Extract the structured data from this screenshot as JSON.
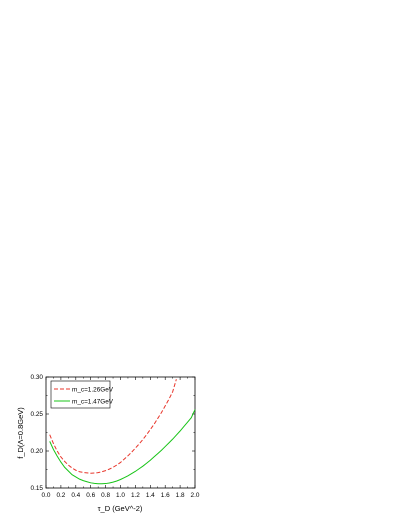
{
  "chart_data": {
    "type": "line",
    "xlabel": "τ_D (GeV^-2)",
    "ylabel": "f_D(Λ=0.8GeV)",
    "xlim": [
      0.0,
      2.0
    ],
    "ylim": [
      0.15,
      0.3
    ],
    "x_ticks": [
      "0.0",
      "0.2",
      "0.4",
      "0.6",
      "0.8",
      "1.0",
      "1.2",
      "1.4",
      "1.6",
      "1.8",
      "2.0"
    ],
    "y_ticks": [
      "0.15",
      "0.20",
      "0.25",
      "0.30"
    ],
    "grid": false,
    "legend_position": "top-left",
    "series": [
      {
        "name": "m_c=1.26GeV",
        "style": "dashed",
        "color": "#e8362b",
        "x": [
          0.05,
          0.1,
          0.15,
          0.2,
          0.25,
          0.3,
          0.35,
          0.4,
          0.45,
          0.5,
          0.55,
          0.6,
          0.65,
          0.7,
          0.75,
          0.8,
          0.85,
          0.9,
          0.95,
          1.0,
          1.05,
          1.1,
          1.15,
          1.2,
          1.25,
          1.3,
          1.35,
          1.4,
          1.45,
          1.5,
          1.55,
          1.6,
          1.65,
          1.7,
          1.75
        ],
        "y": [
          0.222,
          0.21,
          0.2,
          0.192,
          0.186,
          0.181,
          0.177,
          0.174,
          0.172,
          0.171,
          0.1705,
          0.17,
          0.1702,
          0.1708,
          0.172,
          0.1735,
          0.1755,
          0.178,
          0.181,
          0.1845,
          0.189,
          0.1935,
          0.1985,
          0.204,
          0.2095,
          0.2155,
          0.222,
          0.229,
          0.236,
          0.244,
          0.252,
          0.261,
          0.27,
          0.28,
          0.297
        ]
      },
      {
        "name": "m_c=1.47GeV",
        "style": "solid",
        "color": "#18c418",
        "x": [
          0.05,
          0.1,
          0.15,
          0.2,
          0.25,
          0.3,
          0.35,
          0.4,
          0.45,
          0.5,
          0.55,
          0.6,
          0.65,
          0.7,
          0.75,
          0.8,
          0.85,
          0.9,
          0.95,
          1.0,
          1.05,
          1.1,
          1.15,
          1.2,
          1.25,
          1.3,
          1.35,
          1.4,
          1.45,
          1.5,
          1.55,
          1.6,
          1.65,
          1.7,
          1.75,
          1.8,
          1.85,
          1.9,
          1.95,
          2.0
        ],
        "y": [
          0.213,
          0.202,
          0.193,
          0.185,
          0.178,
          0.173,
          0.168,
          0.165,
          0.162,
          0.16,
          0.1585,
          0.157,
          0.1562,
          0.1558,
          0.1558,
          0.156,
          0.1568,
          0.158,
          0.1595,
          0.1615,
          0.164,
          0.1665,
          0.1695,
          0.1725,
          0.176,
          0.1795,
          0.1835,
          0.1875,
          0.192,
          0.1965,
          0.201,
          0.206,
          0.211,
          0.216,
          0.2215,
          0.227,
          0.233,
          0.239,
          0.245,
          0.256
        ]
      }
    ]
  }
}
